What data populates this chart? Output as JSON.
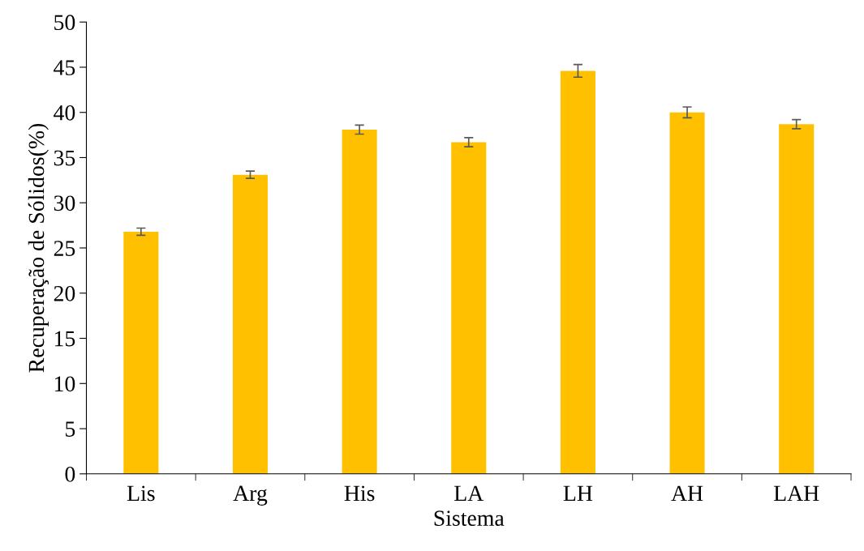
{
  "chart_data": {
    "type": "bar",
    "xlabel": "Sistema",
    "ylabel": "Recuperação de Sólidos(%)",
    "categories": [
      "Lis",
      "Arg",
      "His",
      "LA",
      "LH",
      "AH",
      "LAH"
    ],
    "values": [
      26.8,
      33.1,
      38.1,
      36.7,
      44.6,
      40.0,
      38.7
    ],
    "errors": [
      0.4,
      0.4,
      0.5,
      0.5,
      0.7,
      0.6,
      0.5
    ],
    "color": "#ffc000",
    "ylim": [
      0,
      50
    ],
    "yticks": [
      0,
      5,
      10,
      15,
      20,
      25,
      30,
      35,
      40,
      45,
      50
    ],
    "grid": false,
    "legend": false
  }
}
